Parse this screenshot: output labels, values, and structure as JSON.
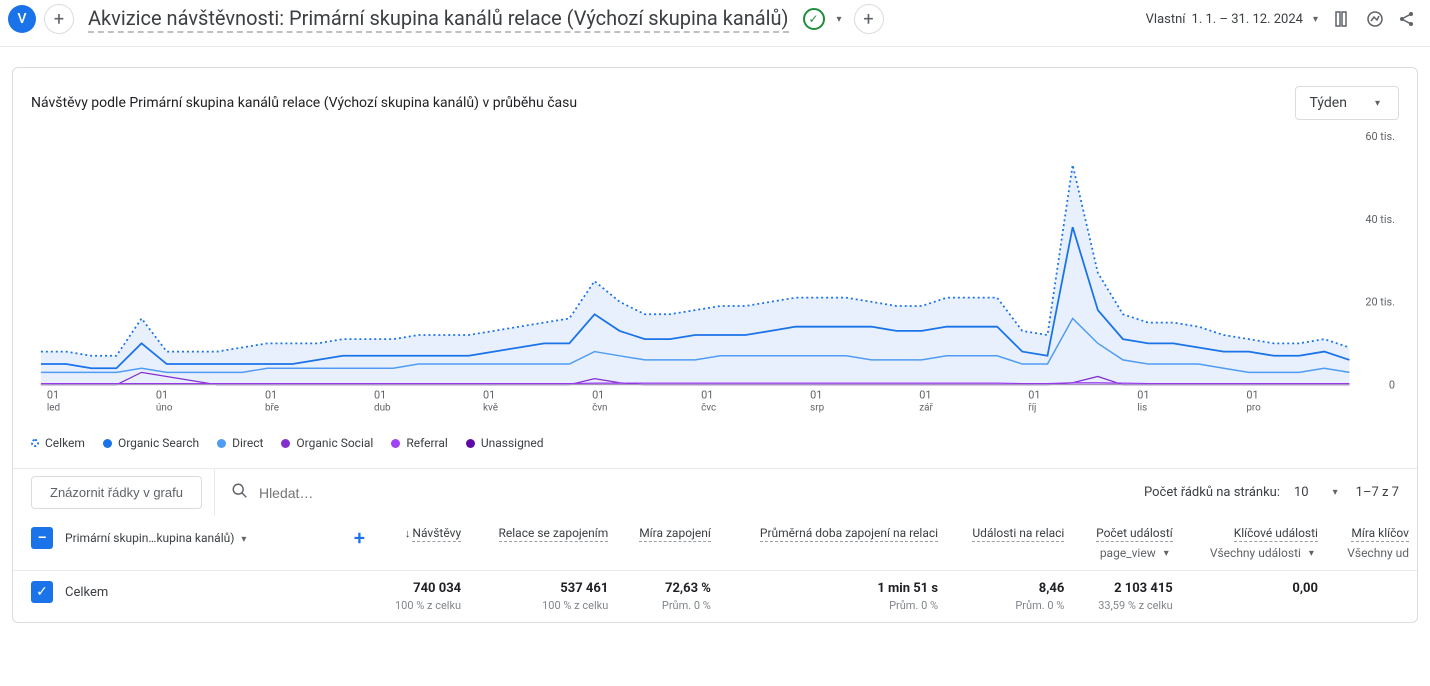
{
  "header": {
    "avatar_letter": "V",
    "title": "Akvizice návštěvnosti: Primární skupina kanálů relace (Výchozí skupina kanálů)",
    "date_label": "Vlastní",
    "date_range": "1. 1. – 31. 12. 2024"
  },
  "chart": {
    "title": "Návštěvy podle Primární skupina kanálů relace (Výchozí skupina kanálů) v průběhu času",
    "granularity": "Týden",
    "y_ticks": [
      "0",
      "20 tis.",
      "40 tis.",
      "60 tis."
    ],
    "x_ticks": [
      {
        "d": "01",
        "m": "led"
      },
      {
        "d": "01",
        "m": "úno"
      },
      {
        "d": "01",
        "m": "bře"
      },
      {
        "d": "01",
        "m": "dub"
      },
      {
        "d": "01",
        "m": "kvě"
      },
      {
        "d": "01",
        "m": "čvn"
      },
      {
        "d": "01",
        "m": "čvc"
      },
      {
        "d": "01",
        "m": "srp"
      },
      {
        "d": "01",
        "m": "zář"
      },
      {
        "d": "01",
        "m": "říj"
      },
      {
        "d": "01",
        "m": "lis"
      },
      {
        "d": "01",
        "m": "pro"
      }
    ],
    "legend": [
      {
        "label": "Celkem",
        "color": "#1a73e8",
        "style": "dotted"
      },
      {
        "label": "Organic Search",
        "color": "#1a73e8",
        "style": "solid"
      },
      {
        "label": "Direct",
        "color": "#4f9cf2",
        "style": "solid"
      },
      {
        "label": "Organic Social",
        "color": "#8430ce",
        "style": "solid"
      },
      {
        "label": "Referral",
        "color": "#a142f4",
        "style": "solid"
      },
      {
        "label": "Unassigned",
        "color": "#5e0ba6",
        "style": "solid"
      }
    ],
    "colors": {
      "total": "#1a73e8",
      "organic_search": "#1a73e8",
      "direct": "#4f9cf2",
      "organic_social": "#8430ce",
      "referral": "#a142f4",
      "unassigned": "#5e0ba6",
      "area_fill": "#e8f0fe"
    },
    "series": {
      "total": [
        8,
        8,
        7,
        7,
        16,
        8,
        8,
        8,
        9,
        10,
        10,
        10,
        11,
        11,
        11,
        12,
        12,
        12,
        13,
        14,
        15,
        16,
        25,
        20,
        17,
        17,
        18,
        19,
        19,
        20,
        21,
        21,
        21,
        20,
        19,
        19,
        21,
        21,
        21,
        13,
        12,
        53,
        27,
        17,
        15,
        15,
        14,
        12,
        11,
        10,
        10,
        11,
        9
      ],
      "organic_search": [
        5,
        5,
        4,
        4,
        10,
        5,
        5,
        5,
        5,
        5,
        5,
        6,
        7,
        7,
        7,
        7,
        7,
        7,
        8,
        9,
        10,
        10,
        17,
        13,
        11,
        11,
        12,
        12,
        12,
        13,
        14,
        14,
        14,
        14,
        13,
        13,
        14,
        14,
        14,
        8,
        7,
        38,
        18,
        11,
        10,
        10,
        9,
        8,
        8,
        7,
        7,
        8,
        6
      ],
      "direct": [
        3,
        3,
        3,
        3,
        4,
        3,
        3,
        3,
        3,
        4,
        4,
        4,
        4,
        4,
        4,
        5,
        5,
        5,
        5,
        5,
        5,
        5,
        8,
        7,
        6,
        6,
        6,
        7,
        7,
        7,
        7,
        7,
        7,
        6,
        6,
        6,
        7,
        7,
        7,
        5,
        5,
        16,
        10,
        6,
        5,
        5,
        5,
        4,
        3,
        3,
        3,
        4,
        3
      ],
      "organic_social": [
        0,
        0,
        0,
        0,
        3,
        2,
        1,
        0,
        0,
        0,
        0,
        0,
        0,
        0,
        0,
        0,
        0,
        0,
        0,
        0,
        0,
        0,
        1.5,
        0.5,
        0,
        0,
        0,
        0,
        0,
        0,
        0,
        0,
        0,
        0,
        0,
        0,
        0,
        0,
        0,
        0,
        0,
        0.5,
        2,
        0,
        0,
        0,
        0,
        0,
        0,
        0,
        0,
        0,
        0
      ],
      "referral": [
        0.3,
        0.3,
        0.3,
        0.3,
        0.3,
        0.3,
        0.3,
        0.3,
        0.3,
        0.3,
        0.3,
        0.3,
        0.3,
        0.3,
        0.3,
        0.3,
        0.3,
        0.3,
        0.3,
        0.3,
        0.3,
        0.3,
        0.4,
        0.4,
        0.4,
        0.4,
        0.4,
        0.4,
        0.4,
        0.4,
        0.4,
        0.4,
        0.4,
        0.4,
        0.4,
        0.4,
        0.4,
        0.4,
        0.4,
        0.3,
        0.3,
        0.5,
        0.5,
        0.4,
        0.3,
        0.3,
        0.3,
        0.3,
        0.3,
        0.3,
        0.3,
        0.3,
        0.3
      ],
      "unassigned": [
        0.1,
        0.1,
        0.1,
        0.1,
        0.1,
        0.1,
        0.1,
        0.1,
        0.1,
        0.1,
        0.1,
        0.1,
        0.1,
        0.1,
        0.1,
        0.1,
        0.1,
        0.1,
        0.1,
        0.1,
        0.1,
        0.1,
        0.1,
        0.1,
        0.1,
        0.1,
        0.1,
        0.1,
        0.1,
        0.1,
        0.1,
        0.1,
        0.1,
        0.1,
        0.1,
        0.1,
        0.1,
        0.1,
        0.1,
        0.1,
        0.1,
        0.1,
        0.1,
        0.1,
        0.1,
        0.1,
        0.1,
        0.1,
        0.1,
        0.1,
        0.1,
        0.1,
        0.1
      ]
    },
    "y_max": 60
  },
  "toolbar": {
    "graph_button": "Znázornit řádky v grafu",
    "search_placeholder": "Hledat…",
    "rows_label": "Počet řádků na stránku:",
    "rows_value": "10",
    "page_status": "1–7 z 7"
  },
  "table": {
    "dimension_header": "Primární skupin…kupina kanálů)",
    "columns": [
      {
        "label": "Návštěvy",
        "sort": true
      },
      {
        "label": "Relace se zapojením"
      },
      {
        "label": "Míra zapojení"
      },
      {
        "label": "Průměrná doba zapojení na relaci"
      },
      {
        "label": "Události na relaci"
      },
      {
        "label": "Počet událostí",
        "sub": "page_view",
        "sub_dd": true
      },
      {
        "label": "Klíčové události",
        "sub": "Všechny události",
        "sub_dd": true
      },
      {
        "label": "Míra klíčov",
        "sub": "Všechny ud",
        "truncated": true
      }
    ],
    "total_row": {
      "label": "Celkem",
      "cells": [
        {
          "v": "740 034",
          "s": "100 % z celku"
        },
        {
          "v": "537 461",
          "s": "100 % z celku"
        },
        {
          "v": "72,63 %",
          "s": "Prům. 0 %"
        },
        {
          "v": "1 min 51 s",
          "s": "Prům. 0 %"
        },
        {
          "v": "8,46",
          "s": "Prům. 0 %"
        },
        {
          "v": "2 103 415",
          "s": "33,59 % z celku"
        },
        {
          "v": "0,00",
          "s": ""
        },
        {
          "v": "",
          "s": ""
        }
      ]
    }
  }
}
